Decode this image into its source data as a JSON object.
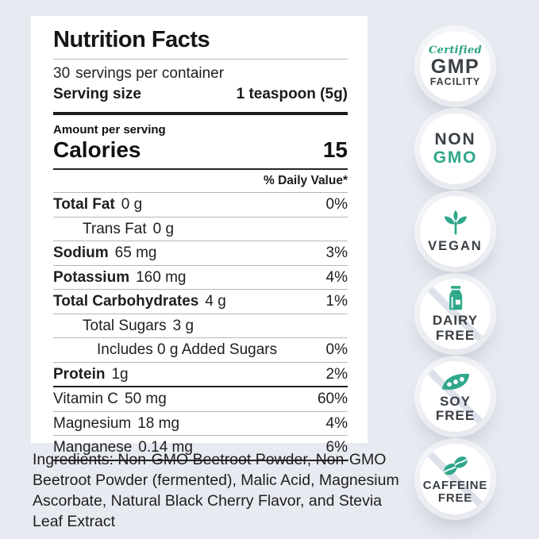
{
  "colors": {
    "background": "#e8eaf1",
    "accent_teal": "#2fa78a",
    "badge_text": "#3a4046"
  },
  "label": {
    "title": "Nutrition Facts",
    "servings_count": "30",
    "servings_text": "servings per container",
    "serving_size_label": "Serving size",
    "serving_size_value": "1 teaspoon (5g)",
    "amount_per_serving": "Amount per serving",
    "calories_label": "Calories",
    "calories_value": "15",
    "daily_value_header": "% Daily Value*",
    "rows": [
      {
        "label": "Total Fat",
        "value": "0 g",
        "pct": "0%",
        "bold": true,
        "indent": 0
      },
      {
        "label": "Trans Fat",
        "value": "0 g",
        "pct": "",
        "bold": false,
        "indent": 1
      },
      {
        "label": "Sodium",
        "value": "65 mg",
        "pct": "3%",
        "bold": true,
        "indent": 0
      },
      {
        "label": "Potassium",
        "value": "160 mg",
        "pct": "4%",
        "bold": true,
        "indent": 0
      },
      {
        "label": "Total Carbohydrates",
        "value": "4 g",
        "pct": "1%",
        "bold": true,
        "indent": 0
      },
      {
        "label": "Total Sugars",
        "value": "3 g",
        "pct": "",
        "bold": false,
        "indent": 1
      },
      {
        "label": "Includes 0 g Added Sugars",
        "value": "",
        "pct": "0%",
        "bold": false,
        "indent": 2
      },
      {
        "label": "Protein",
        "value": "1g",
        "pct": "2%",
        "bold": true,
        "indent": 0
      },
      {
        "label": "Vitamin C",
        "value": "50 mg",
        "pct": "60%",
        "bold": false,
        "indent": 0,
        "section_break_before": true
      },
      {
        "label": "Magnesium",
        "value": "18 mg",
        "pct": "4%",
        "bold": false,
        "indent": 0
      },
      {
        "label": "Manganese",
        "value": "0.14 mg",
        "pct": "6%",
        "bold": false,
        "indent": 0
      }
    ]
  },
  "ingredients": "Ingredients: Non-GMO Beetroot Powder, Non-GMO Beetroot Powder (fermented), Malic Acid, Magnesium Ascorbate, Natural Black Cherry Flavor, and Stevia Leaf Extract",
  "badges": [
    {
      "id": "gmp",
      "icon": "",
      "slash": false,
      "lines": [
        "Certified",
        "GMP",
        "FACILITY"
      ]
    },
    {
      "id": "non-gmo",
      "icon": "",
      "slash": false,
      "lines": [
        "NON",
        "GMO"
      ]
    },
    {
      "id": "vegan",
      "icon": "leaf-icon",
      "slash": false,
      "lines": [
        "VEGAN"
      ]
    },
    {
      "id": "dairy-free",
      "icon": "milk-carton-icon",
      "slash": true,
      "lines": [
        "DAIRY",
        "FREE"
      ]
    },
    {
      "id": "soy-free",
      "icon": "soy-pod-icon",
      "slash": true,
      "lines": [
        "SOY",
        "FREE"
      ]
    },
    {
      "id": "caffeine-free",
      "icon": "coffee-beans-icon",
      "slash": true,
      "lines": [
        "CAFFEINE",
        "FREE"
      ]
    }
  ]
}
